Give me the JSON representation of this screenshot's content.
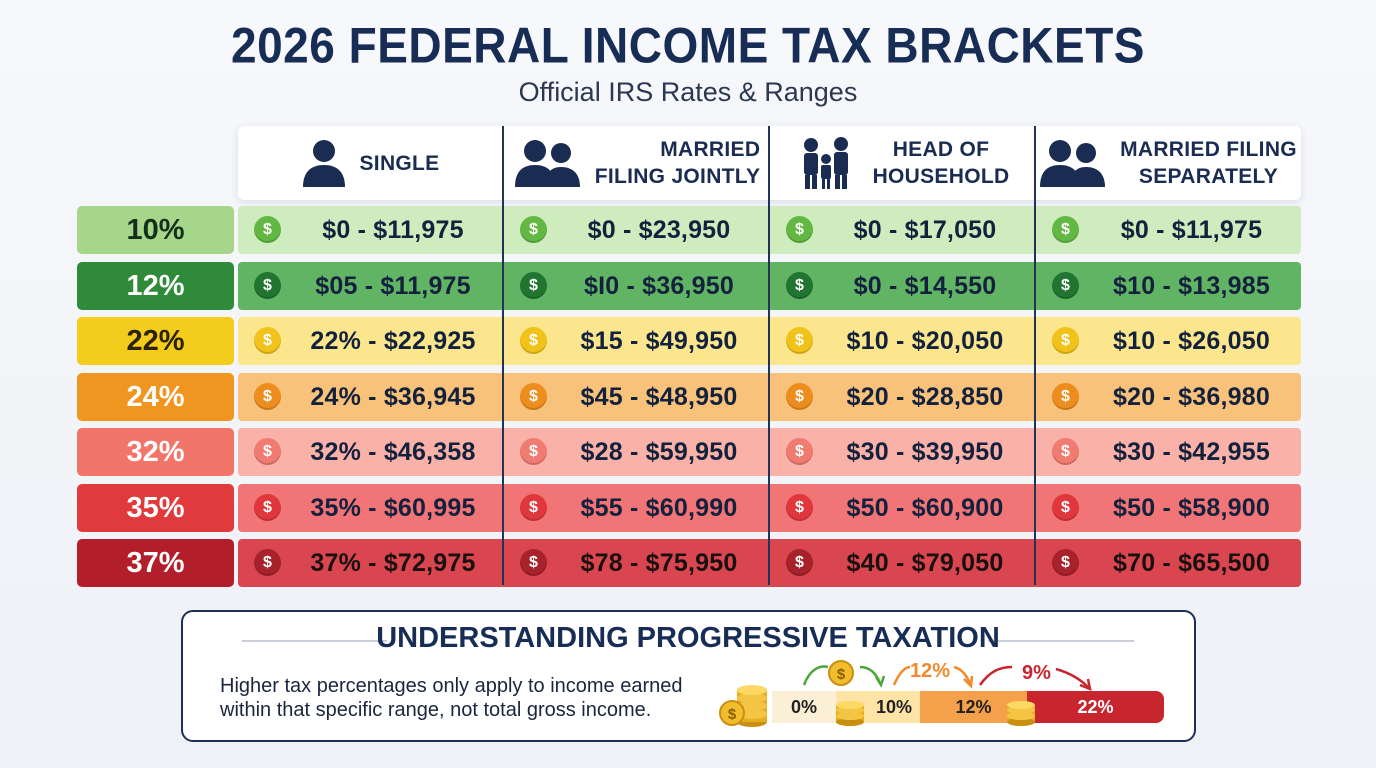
{
  "title": "2026 FEDERAL INCOME TAX BRACKETS",
  "subtitle": "Official IRS Rates & Ranges",
  "columns": [
    {
      "label_line1": "SINGLE",
      "label_line2": "",
      "icon": "person-icon"
    },
    {
      "label_line1": "MARRIED",
      "label_line2": "FILING JOINTLY",
      "icon": "couple-icon"
    },
    {
      "label_line1": "HEAD OF",
      "label_line2": "HOUSEHOLD",
      "icon": "family-icon"
    },
    {
      "label_line1": "MARRIED FILING",
      "label_line2": "SEPARATELY",
      "icon": "couple-icon"
    }
  ],
  "rows": [
    {
      "rate": "10%",
      "values": [
        "$0 - $11,975",
        "$0 - $23,950",
        "$0 - $17,050",
        "$0 - $11,975"
      ]
    },
    {
      "rate": "12%",
      "values": [
        "$05 - $11,975",
        "$I0 - $36,950",
        "$0 - $14,550",
        "$10 - $13,985"
      ]
    },
    {
      "rate": "22%",
      "values": [
        "22% - $22,925",
        "$15 - $49,950",
        "$10 - $20,050",
        "$10 - $26,050"
      ]
    },
    {
      "rate": "24%",
      "values": [
        "24% - $36,945",
        "$45 - $48,950",
        "$20 - $28,850",
        "$20 - $36,980"
      ]
    },
    {
      "rate": "32%",
      "values": [
        "32% - $46,358",
        "$28 - $59,950",
        "$30 - $39,950",
        "$30 - $42,955"
      ]
    },
    {
      "rate": "35%",
      "values": [
        "35% - $60,995",
        "$55 - $60,990",
        "$50 - $60,900",
        "$50 - $58,900"
      ]
    },
    {
      "rate": "37%",
      "values": [
        "37% - $72,975",
        "$78 - $75,950",
        "$40 - $79,050",
        "$70 - $65,500"
      ]
    }
  ],
  "coin_symbol": "$",
  "colors": {
    "rate_bg": [
      "#a5d68a",
      "#2f8a39",
      "#f4cd1c",
      "#f0951f",
      "#f2756a",
      "#e13a3d",
      "#b21f2b"
    ],
    "rate_text": [
      "#14301a",
      "#ffffff",
      "#2a2200",
      "#ffffff",
      "#ffffff",
      "#ffffff",
      "#ffffff"
    ],
    "row_bg": [
      "#cfecbf",
      "#62b465",
      "#fbe68d",
      "#f8c27b",
      "#f9b1a8",
      "#f17476",
      "#d9464f"
    ],
    "coin": [
      "#63b843",
      "#227531",
      "#f0c21a",
      "#ec8d1e",
      "#f07b70",
      "#e0373c",
      "#a8222b"
    ]
  },
  "info": {
    "title": "UNDERSTANDING PROGRESSIVE TAXATION",
    "text": "Higher tax percentages only apply to income earned within that specific range, not total gross income.",
    "scale": [
      "0%",
      "10%",
      "12%",
      "22%"
    ],
    "arrow_labels": [
      "12%",
      "9%"
    ],
    "coin_symbol": "$"
  }
}
